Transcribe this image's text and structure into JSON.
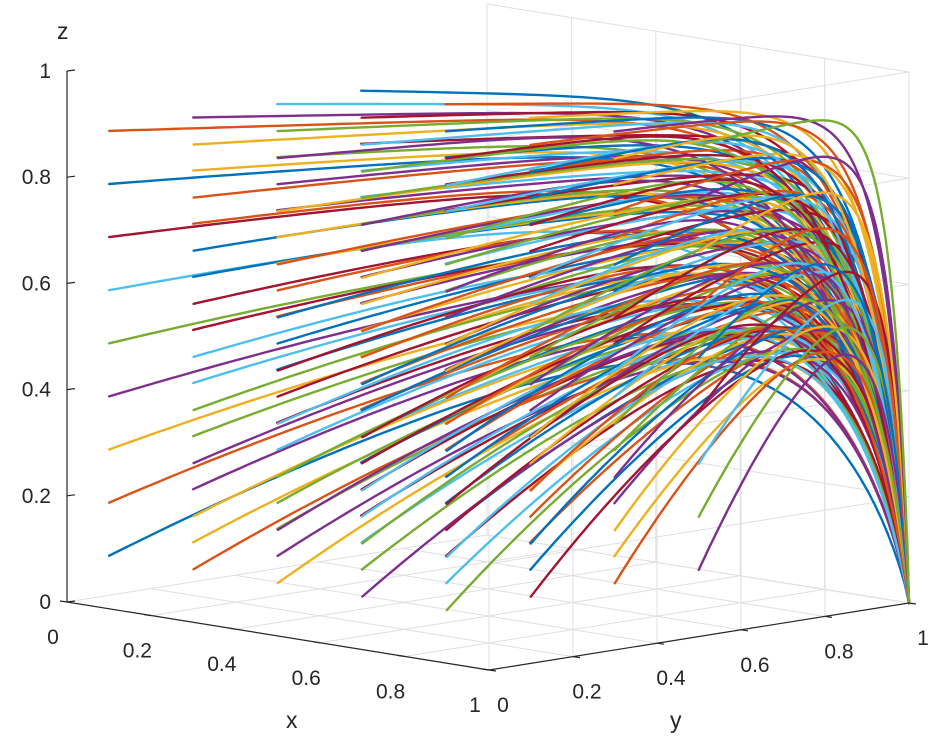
{
  "chart_data": {
    "type": "line",
    "subtype": "3d-trajectories",
    "title": "",
    "xlabel": "x",
    "ylabel": "y",
    "zlabel": "z",
    "xlim": [
      0,
      1
    ],
    "ylim": [
      0,
      1
    ],
    "zlim": [
      0,
      1
    ],
    "x_ticks": [
      "0",
      "0.2",
      "0.4",
      "0.6",
      "0.8",
      "1"
    ],
    "y_ticks": [
      "0",
      "0.2",
      "0.4",
      "0.6",
      "0.8",
      "1"
    ],
    "z_ticks": [
      "0",
      "0.2",
      "0.4",
      "0.6",
      "0.8",
      "1"
    ],
    "grid": true,
    "legend": "none",
    "colors": [
      "#0072BD",
      "#D95319",
      "#EDB120",
      "#7E2F8E",
      "#77AC30",
      "#4DBEEE",
      "#A2142F"
    ],
    "endpoint": [
      1,
      1,
      0
    ],
    "series": {
      "note_x0_values": [
        0.1,
        0.2,
        0.3,
        0.4,
        0.5,
        0.6,
        0.7,
        0.8,
        0.9
      ],
      "note_y0_values": [
        0.0,
        0.1,
        0.2,
        0.3,
        0.4,
        0.5,
        0.6,
        0.7,
        0.8
      ],
      "z0_values": [
        0.1,
        0.2,
        0.3,
        0.4,
        0.5,
        0.6,
        0.7,
        0.8,
        0.9
      ]
    }
  }
}
